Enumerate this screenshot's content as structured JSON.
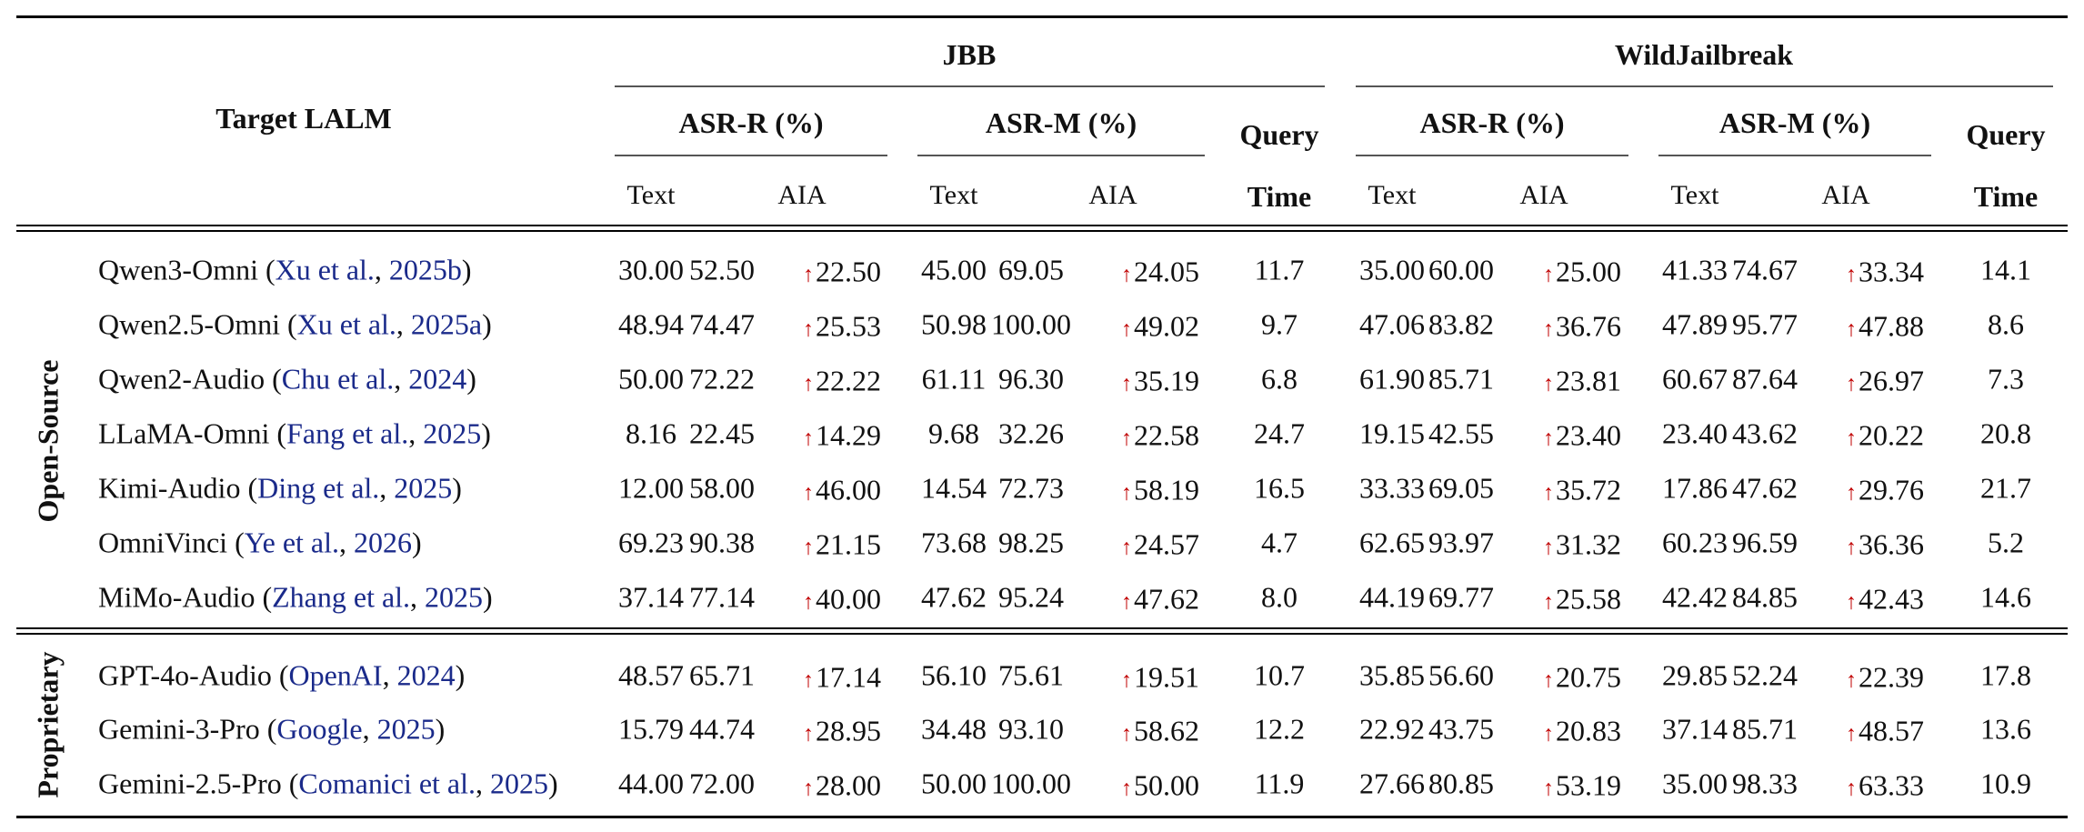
{
  "header": {
    "target": "Target  LALM",
    "datasets": [
      "JBB",
      "WildJailbreak"
    ],
    "asr_r": "ASR-R (%)",
    "asr_m": "ASR-M (%)",
    "query": "Query",
    "time": "Time",
    "text": "Text",
    "aia": "AIA"
  },
  "groups": [
    {
      "label": "Open-Source",
      "rows": [
        {
          "model": "Qwen3-Omni",
          "cite_author": "Xu et al.",
          "cite_year": "2025b",
          "cells": [
            "30.00",
            "52.50",
            "22.50",
            "45.00",
            "69.05",
            "24.05",
            "11.7",
            "35.00",
            "60.00",
            "25.00",
            "41.33",
            "74.67",
            "33.34",
            "14.1"
          ]
        },
        {
          "model": "Qwen2.5-Omni",
          "cite_author": "Xu et al.",
          "cite_year": "2025a",
          "cells": [
            "48.94",
            "74.47",
            "25.53",
            "50.98",
            "100.00",
            "49.02",
            "9.7",
            "47.06",
            "83.82",
            "36.76",
            "47.89",
            "95.77",
            "47.88",
            "8.6"
          ]
        },
        {
          "model": "Qwen2-Audio",
          "cite_author": "Chu et al.",
          "cite_year": "2024",
          "cells": [
            "50.00",
            "72.22",
            "22.22",
            "61.11",
            "96.30",
            "35.19",
            "6.8",
            "61.90",
            "85.71",
            "23.81",
            "60.67",
            "87.64",
            "26.97",
            "7.3"
          ]
        },
        {
          "model": "LLaMA-Omni",
          "cite_author": "Fang et al.",
          "cite_year": "2025",
          "cells": [
            "8.16",
            "22.45",
            "14.29",
            "9.68",
            "32.26",
            "22.58",
            "24.7",
            "19.15",
            "42.55",
            "23.40",
            "23.40",
            "43.62",
            "20.22",
            "20.8"
          ]
        },
        {
          "model": "Kimi-Audio",
          "cite_author": "Ding et al.",
          "cite_year": "2025",
          "cells": [
            "12.00",
            "58.00",
            "46.00",
            "14.54",
            "72.73",
            "58.19",
            "16.5",
            "33.33",
            "69.05",
            "35.72",
            "17.86",
            "47.62",
            "29.76",
            "21.7"
          ]
        },
        {
          "model": "OmniVinci",
          "cite_author": "Ye et al.",
          "cite_year": "2026",
          "cells": [
            "69.23",
            "90.38",
            "21.15",
            "73.68",
            "98.25",
            "24.57",
            "4.7",
            "62.65",
            "93.97",
            "31.32",
            "60.23",
            "96.59",
            "36.36",
            "5.2"
          ]
        },
        {
          "model": "MiMo-Audio",
          "cite_author": "Zhang et al.",
          "cite_year": "2025",
          "cells": [
            "37.14",
            "77.14",
            "40.00",
            "47.62",
            "95.24",
            "47.62",
            "8.0",
            "44.19",
            "69.77",
            "25.58",
            "42.42",
            "84.85",
            "42.43",
            "14.6"
          ]
        }
      ]
    },
    {
      "label": "Proprietary",
      "rows": [
        {
          "model": "GPT-4o-Audio",
          "cite_author": "OpenAI",
          "cite_year": "2024",
          "cells": [
            "48.57",
            "65.71",
            "17.14",
            "56.10",
            "75.61",
            "19.51",
            "10.7",
            "35.85",
            "56.60",
            "20.75",
            "29.85",
            "52.24",
            "22.39",
            "17.8"
          ]
        },
        {
          "model": "Gemini-3-Pro",
          "cite_author": "Google",
          "cite_year": "2025",
          "cells": [
            "15.79",
            "44.74",
            "28.95",
            "34.48",
            "93.10",
            "58.62",
            "12.2",
            "22.92",
            "43.75",
            "20.83",
            "37.14",
            "85.71",
            "48.57",
            "13.6"
          ]
        },
        {
          "model": "Gemini-2.5-Pro",
          "cite_author": "Comanici et al.",
          "cite_year": "2025",
          "cells": [
            "44.00",
            "72.00",
            "28.00",
            "50.00",
            "100.00",
            "50.00",
            "11.9",
            "27.66",
            "80.85",
            "53.19",
            "35.00",
            "98.33",
            "63.33",
            "10.9"
          ]
        }
      ]
    }
  ],
  "arrow_glyph": "↑",
  "colors": {
    "citation": "#1a2a8a",
    "arrow": "#c00000"
  }
}
